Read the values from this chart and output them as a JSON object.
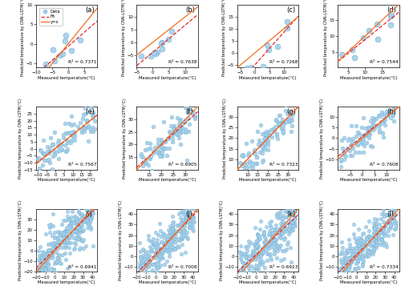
{
  "panels": [
    {
      "label": "a",
      "r2": 0.7371,
      "xlim": [
        -10,
        9
      ],
      "ylim": [
        -6,
        10
      ],
      "xticks": [
        -10,
        -5,
        0,
        5
      ],
      "yticks": [
        -5,
        0,
        5,
        10
      ],
      "n_points": 10,
      "seed": 1,
      "x_range": [
        -7,
        8
      ],
      "slope": 0.75,
      "intercept": -0.5
    },
    {
      "label": "b",
      "r2": 0.7638,
      "xlim": [
        -5,
        14
      ],
      "ylim": [
        -10,
        15
      ],
      "xticks": [
        -5,
        0,
        5,
        10
      ],
      "yticks": [
        -5,
        0,
        5,
        10
      ],
      "n_points": 10,
      "seed": 2,
      "x_range": [
        -4,
        12
      ],
      "slope": 1.2,
      "intercept": -4.5
    },
    {
      "label": "c",
      "r2": 0.7268,
      "xlim": [
        -6,
        15
      ],
      "ylim": [
        -6,
        20
      ],
      "xticks": [
        -5,
        0,
        5,
        10
      ],
      "yticks": [
        -5,
        0,
        5,
        10,
        15
      ],
      "n_points": 10,
      "seed": 3,
      "x_range": [
        -5,
        13
      ],
      "slope": 1.0,
      "intercept": -3.5
    },
    {
      "label": "d",
      "r2": 0.7544,
      "xlim": [
        2,
        20
      ],
      "ylim": [
        0,
        20
      ],
      "xticks": [
        5,
        10,
        15
      ],
      "yticks": [
        5,
        10,
        15
      ],
      "n_points": 10,
      "seed": 4,
      "x_range": [
        3,
        18
      ],
      "slope": 0.85,
      "intercept": 0.5
    },
    {
      "label": "e",
      "r2": 0.7567,
      "xlim": [
        -11,
        24
      ],
      "ylim": [
        -15,
        30
      ],
      "xticks": [
        -10,
        -5,
        0,
        5,
        10,
        15,
        20
      ],
      "yticks": [
        -15,
        -10,
        -5,
        0,
        5,
        10,
        15,
        20,
        25
      ],
      "n_points": 100,
      "seed": 5,
      "x_range": [
        -10,
        23
      ],
      "slope": 1.0,
      "intercept": 0.0
    },
    {
      "label": "f",
      "r2": 0.6905,
      "xlim": [
        10,
        35
      ],
      "ylim": [
        10,
        35
      ],
      "xticks": [
        15,
        20,
        25,
        30
      ],
      "yticks": [
        15,
        20,
        25,
        30
      ],
      "n_points": 100,
      "seed": 6,
      "x_range": [
        11,
        34
      ],
      "slope": 0.9,
      "intercept": 2.0
    },
    {
      "label": "g",
      "r2": 0.7323,
      "xlim": [
        5,
        35
      ],
      "ylim": [
        5,
        35
      ],
      "xticks": [
        10,
        15,
        20,
        25,
        30
      ],
      "yticks": [
        10,
        15,
        20,
        25,
        30
      ],
      "n_points": 100,
      "seed": 7,
      "x_range": [
        6,
        33
      ],
      "slope": 0.95,
      "intercept": 1.0
    },
    {
      "label": "h",
      "r2": 0.7608,
      "xlim": [
        -10,
        15
      ],
      "ylim": [
        -15,
        15
      ],
      "xticks": [
        -5,
        0,
        5,
        10
      ],
      "yticks": [
        -10,
        -5,
        0,
        5,
        10
      ],
      "n_points": 100,
      "seed": 8,
      "x_range": [
        -9,
        13
      ],
      "slope": 0.9,
      "intercept": 1.0
    },
    {
      "label": "i",
      "r2": 0.6941,
      "xlim": [
        -20,
        45
      ],
      "ylim": [
        -20,
        40
      ],
      "xticks": [
        -20,
        -10,
        0,
        10,
        20,
        30,
        40
      ],
      "yticks": [
        -20,
        -10,
        0,
        10,
        20,
        30
      ],
      "n_points": 300,
      "seed": 9,
      "x_range": [
        -18,
        42
      ],
      "slope": 0.88,
      "intercept": 1.0
    },
    {
      "label": "j",
      "r2": 0.7008,
      "xlim": [
        -20,
        45
      ],
      "ylim": [
        -15,
        45
      ],
      "xticks": [
        -20,
        -10,
        0,
        10,
        20,
        30,
        40
      ],
      "yticks": [
        -10,
        0,
        10,
        20,
        30,
        40
      ],
      "n_points": 300,
      "seed": 10,
      "x_range": [
        -18,
        42
      ],
      "slope": 0.9,
      "intercept": 2.0
    },
    {
      "label": "k",
      "r2": 0.6923,
      "xlim": [
        -20,
        45
      ],
      "ylim": [
        -15,
        45
      ],
      "xticks": [
        -20,
        -10,
        0,
        10,
        20,
        30,
        40
      ],
      "yticks": [
        -10,
        0,
        10,
        20,
        30,
        40
      ],
      "n_points": 300,
      "seed": 11,
      "x_range": [
        -18,
        42
      ],
      "slope": 0.88,
      "intercept": 1.5
    },
    {
      "label": "l",
      "r2": 0.7334,
      "xlim": [
        -20,
        45
      ],
      "ylim": [
        -15,
        45
      ],
      "xticks": [
        -20,
        -10,
        0,
        10,
        20,
        30,
        40
      ],
      "yticks": [
        -10,
        0,
        10,
        20,
        30,
        40
      ],
      "n_points": 300,
      "seed": 12,
      "x_range": [
        -18,
        42
      ],
      "slope": 0.92,
      "intercept": 1.0
    }
  ],
  "dot_color": "#a8cfe8",
  "dot_edgecolor": "#6aafd4",
  "fit_color": "#e8282a",
  "yx_color": "#f07020",
  "ylabel": "Predicted temperature by CNN-LSTM(°C)",
  "xlabel": "Measured temperature(°C)"
}
